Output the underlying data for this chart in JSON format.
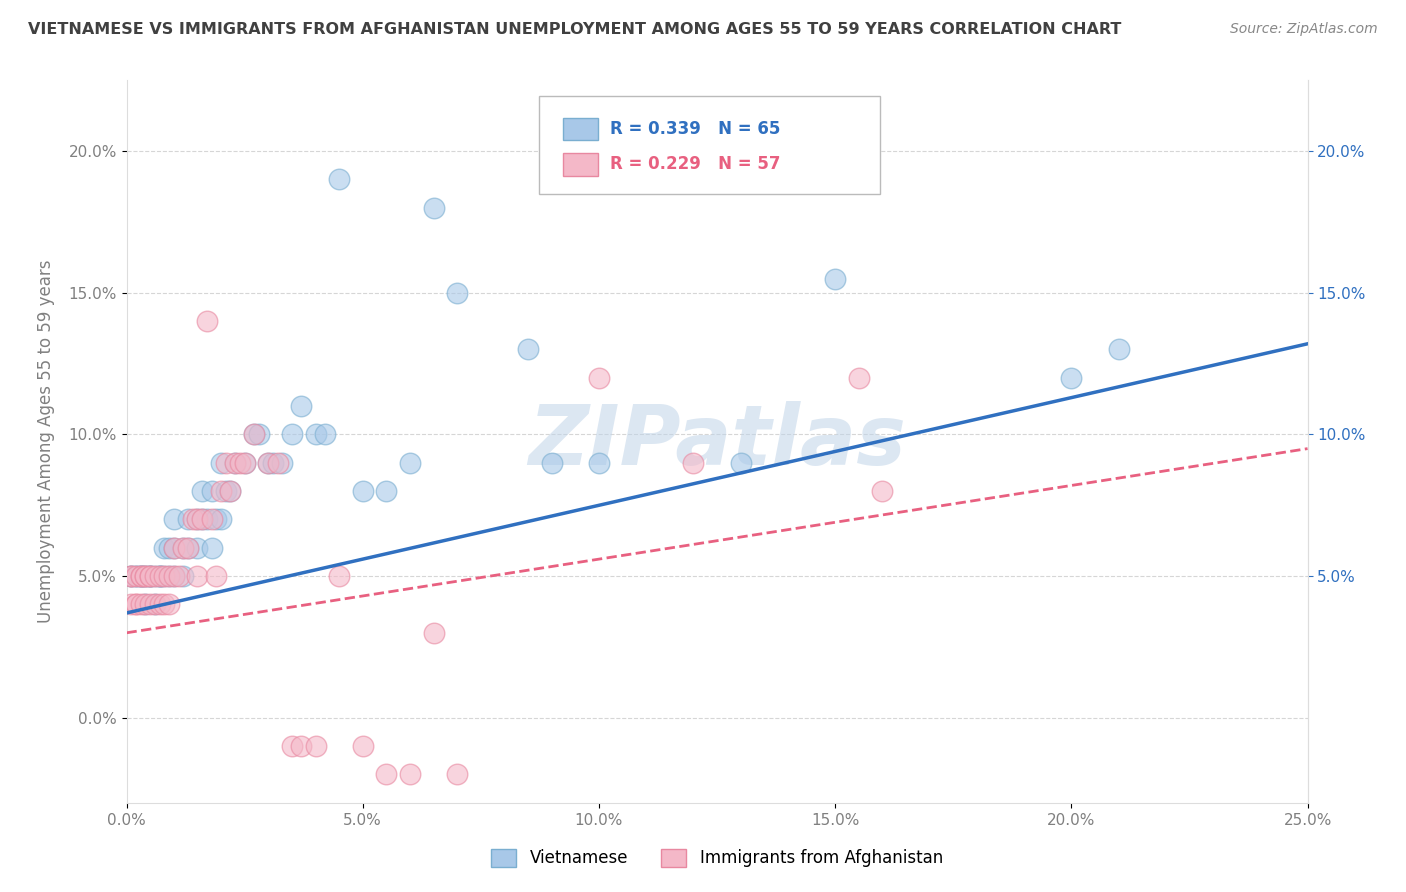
{
  "title": "VIETNAMESE VS IMMIGRANTS FROM AFGHANISTAN UNEMPLOYMENT AMONG AGES 55 TO 59 YEARS CORRELATION CHART",
  "source": "Source: ZipAtlas.com",
  "ylabel": "Unemployment Among Ages 55 to 59 years",
  "xlim": [
    0.0,
    0.25
  ],
  "ylim": [
    -0.03,
    0.225
  ],
  "xticks": [
    0.0,
    0.05,
    0.1,
    0.15,
    0.2,
    0.25
  ],
  "xticklabels": [
    "0.0%",
    "5.0%",
    "10.0%",
    "15.0%",
    "20.0%",
    "25.0%"
  ],
  "yticks": [
    0.0,
    0.05,
    0.1,
    0.15,
    0.2
  ],
  "yticklabels": [
    "0.0%",
    "5.0%",
    "10.0%",
    "15.0%",
    "20.0%"
  ],
  "right_yticks": [
    0.05,
    0.1,
    0.15,
    0.2
  ],
  "right_yticklabels": [
    "5.0%",
    "10.0%",
    "15.0%",
    "20.0%"
  ],
  "blue_color": "#a8c8e8",
  "blue_edge": "#7aaed0",
  "pink_color": "#f4b8c8",
  "pink_edge": "#e888a0",
  "blue_line_color": "#3070c0",
  "pink_line_color": "#e86080",
  "blue_R": 0.339,
  "blue_N": 65,
  "pink_R": 0.229,
  "pink_N": 57,
  "watermark": "ZIPatlas",
  "legend_label_blue": "Vietnamese",
  "legend_label_pink": "Immigrants from Afghanistan",
  "blue_x": [
    0.001,
    0.001,
    0.002,
    0.002,
    0.003,
    0.003,
    0.003,
    0.004,
    0.004,
    0.004,
    0.005,
    0.005,
    0.005,
    0.006,
    0.006,
    0.007,
    0.007,
    0.007,
    0.008,
    0.008,
    0.009,
    0.009,
    0.01,
    0.01,
    0.01,
    0.012,
    0.012,
    0.013,
    0.013,
    0.015,
    0.015,
    0.016,
    0.016,
    0.017,
    0.018,
    0.018,
    0.019,
    0.02,
    0.02,
    0.021,
    0.022,
    0.023,
    0.025,
    0.027,
    0.028,
    0.03,
    0.031,
    0.033,
    0.035,
    0.037,
    0.04,
    0.042,
    0.045,
    0.05,
    0.055,
    0.06,
    0.065,
    0.07,
    0.085,
    0.09,
    0.1,
    0.13,
    0.15,
    0.2,
    0.21
  ],
  "blue_y": [
    0.05,
    0.05,
    0.05,
    0.05,
    0.05,
    0.05,
    0.05,
    0.05,
    0.04,
    0.05,
    0.05,
    0.05,
    0.05,
    0.04,
    0.05,
    0.05,
    0.05,
    0.05,
    0.05,
    0.06,
    0.05,
    0.06,
    0.05,
    0.06,
    0.07,
    0.05,
    0.06,
    0.06,
    0.07,
    0.06,
    0.07,
    0.07,
    0.08,
    0.07,
    0.06,
    0.08,
    0.07,
    0.07,
    0.09,
    0.08,
    0.08,
    0.09,
    0.09,
    0.1,
    0.1,
    0.09,
    0.09,
    0.09,
    0.1,
    0.11,
    0.1,
    0.1,
    0.19,
    0.08,
    0.08,
    0.09,
    0.18,
    0.15,
    0.13,
    0.09,
    0.09,
    0.09,
    0.155,
    0.12,
    0.13
  ],
  "pink_x": [
    0.001,
    0.001,
    0.001,
    0.002,
    0.002,
    0.002,
    0.003,
    0.003,
    0.003,
    0.004,
    0.004,
    0.004,
    0.005,
    0.005,
    0.005,
    0.006,
    0.006,
    0.007,
    0.007,
    0.008,
    0.008,
    0.009,
    0.009,
    0.01,
    0.01,
    0.011,
    0.012,
    0.013,
    0.014,
    0.015,
    0.015,
    0.016,
    0.017,
    0.018,
    0.019,
    0.02,
    0.021,
    0.022,
    0.023,
    0.024,
    0.025,
    0.027,
    0.03,
    0.032,
    0.035,
    0.037,
    0.04,
    0.045,
    0.05,
    0.055,
    0.06,
    0.065,
    0.07,
    0.1,
    0.12,
    0.155,
    0.16
  ],
  "pink_y": [
    0.05,
    0.04,
    0.05,
    0.04,
    0.04,
    0.05,
    0.05,
    0.04,
    0.05,
    0.04,
    0.05,
    0.05,
    0.04,
    0.05,
    0.05,
    0.04,
    0.05,
    0.04,
    0.05,
    0.04,
    0.05,
    0.04,
    0.05,
    0.05,
    0.06,
    0.05,
    0.06,
    0.06,
    0.07,
    0.05,
    0.07,
    0.07,
    0.14,
    0.07,
    0.05,
    0.08,
    0.09,
    0.08,
    0.09,
    0.09,
    0.09,
    0.1,
    0.09,
    0.09,
    -0.01,
    -0.01,
    -0.01,
    0.05,
    -0.01,
    -0.02,
    -0.02,
    0.03,
    -0.02,
    0.12,
    0.09,
    0.12,
    0.08
  ],
  "grid_color": "#cccccc",
  "title_color": "#404040",
  "tick_color": "#808080",
  "watermark_color": "#c0d4e8",
  "blue_trend_start_y": 0.037,
  "blue_trend_end_y": 0.132,
  "pink_trend_start_y": 0.03,
  "pink_trend_end_y": 0.095
}
